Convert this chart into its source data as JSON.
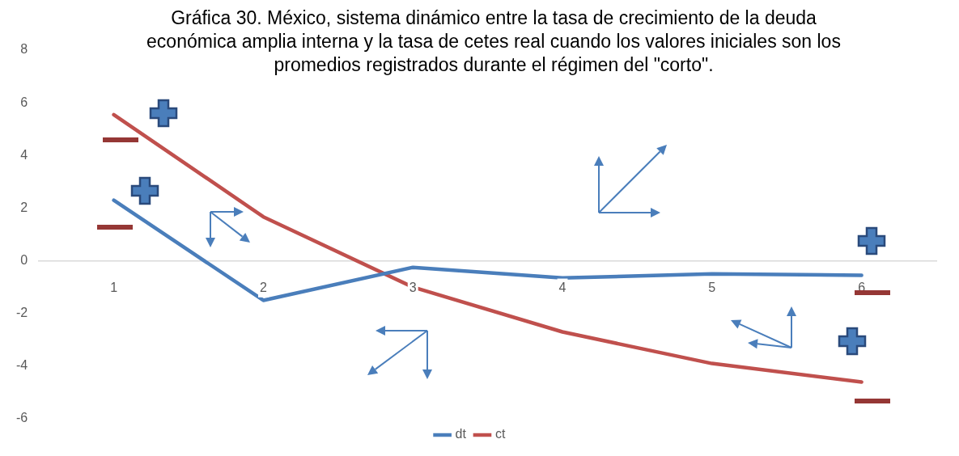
{
  "chart_data": {
    "type": "line",
    "title": "Gráfica 30. México, sistema dinámico entre la tasa de crecimiento de la deuda económica amplia interna y la tasa de cetes real cuando los valores iniciales son los promedios registrados durante el régimen del \"corto\".",
    "categories": [
      "1",
      "2",
      "3",
      "4",
      "5",
      "6"
    ],
    "series": [
      {
        "name": "dt",
        "color": "#4a7ebb",
        "values": [
          2.3,
          -1.5,
          -0.25,
          -0.65,
          -0.5,
          -0.55
        ]
      },
      {
        "name": "ct",
        "color": "#c0504d",
        "values": [
          5.55,
          1.67,
          -1.0,
          -2.7,
          -3.9,
          -4.6
        ]
      }
    ],
    "ylim": [
      -6,
      8
    ],
    "yticks": [
      -6,
      -4,
      -2,
      0,
      2,
      4,
      6,
      8
    ],
    "grid": false,
    "legend": "bottom",
    "marker": "none",
    "line_style": "solid"
  }
}
